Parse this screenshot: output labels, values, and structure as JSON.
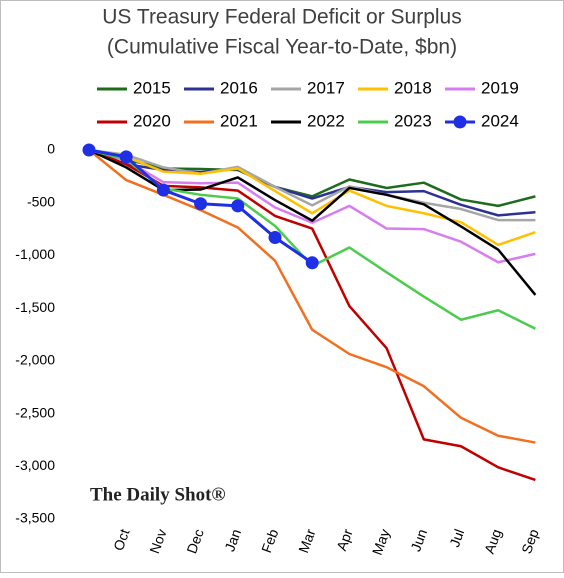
{
  "chart_data": {
    "type": "line",
    "title": "US Treasury Federal Deficit or Surplus",
    "subtitle": "(Cumulative Fiscal Year-to-Date, $bn)",
    "annotation": "The Daily Shot®",
    "categories": [
      null,
      "Oct",
      "Nov",
      "Dec",
      "Jan",
      "Feb",
      "Mar",
      "Apr",
      "May",
      "Jun",
      "Jul",
      "Aug",
      "Sep"
    ],
    "series": [
      {
        "name": "2015",
        "color": "#1e6b1e",
        "values": [
          0,
          -90,
          -175,
          -180,
          -190,
          -350,
          -440,
          -280,
          -360,
          -310,
          -470,
          -530,
          -440
        ]
      },
      {
        "name": "2016",
        "color": "#2e3192",
        "values": [
          0,
          -135,
          -190,
          -210,
          -180,
          -350,
          -460,
          -350,
          -400,
          -390,
          -520,
          -620,
          -590
        ]
      },
      {
        "name": "2017",
        "color": "#a6a6a6",
        "values": [
          0,
          -45,
          -165,
          -225,
          -160,
          -350,
          -525,
          -345,
          -425,
          -500,
          -560,
          -665,
          -665
        ]
      },
      {
        "name": "2018",
        "color": "#ffc000",
        "values": [
          0,
          -65,
          -205,
          -225,
          -175,
          -390,
          -600,
          -385,
          -530,
          -600,
          -685,
          -900,
          -780
        ]
      },
      {
        "name": "2019",
        "color": "#d67ef0",
        "values": [
          0,
          -100,
          -305,
          -315,
          -310,
          -545,
          -690,
          -530,
          -745,
          -750,
          -870,
          -1065,
          -985
        ]
      },
      {
        "name": "2020",
        "color": "#c00000",
        "values": [
          0,
          -135,
          -340,
          -355,
          -385,
          -625,
          -745,
          -1480,
          -1880,
          -2745,
          -2810,
          -3010,
          -3130
        ]
      },
      {
        "name": "2021",
        "color": "#f07020",
        "values": [
          0,
          -285,
          -425,
          -570,
          -735,
          -1050,
          -1705,
          -1935,
          -2060,
          -2240,
          -2540,
          -2710,
          -2775
        ]
      },
      {
        "name": "2022",
        "color": "#000000",
        "values": [
          0,
          -165,
          -380,
          -375,
          -260,
          -475,
          -670,
          -360,
          -425,
          -515,
          -725,
          -945,
          -1375
        ]
      },
      {
        "name": "2023",
        "color": "#4ccc4c",
        "values": [
          0,
          -90,
          -365,
          -425,
          -460,
          -720,
          -1100,
          -925,
          -1160,
          -1390,
          -1610,
          -1520,
          -1695
        ]
      },
      {
        "name": "2024",
        "color": "#1f2fe6",
        "markers": true,
        "values": [
          0,
          -65,
          -380,
          -510,
          -530,
          -830,
          -1070,
          null,
          null,
          null,
          null,
          null,
          null
        ]
      }
    ],
    "ylim": [
      -3500,
      0
    ],
    "yticks": [
      0,
      -500,
      {
        "value": -1000,
        "label": "-1,000"
      },
      {
        "value": -1500,
        "label": "-1,500"
      },
      {
        "value": -2000,
        "label": "-2,000"
      },
      {
        "value": -2500,
        "label": "-2,500"
      },
      {
        "value": -3000,
        "label": "-3,000"
      },
      {
        "value": -3500,
        "label": "-3,500"
      }
    ],
    "grid": false
  }
}
